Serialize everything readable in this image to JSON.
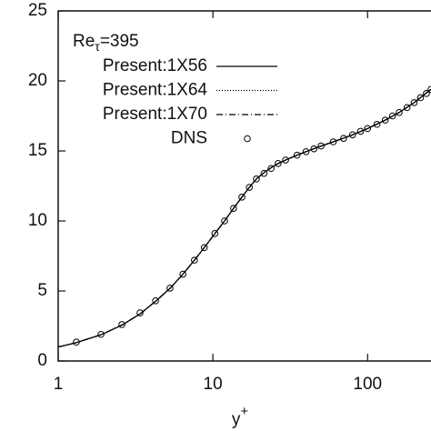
{
  "chart_data": {
    "type": "line",
    "annotation": [
      "Re",
      "τ",
      "=395"
    ],
    "x_label": [
      "y",
      "+"
    ],
    "xlim": [
      1,
      257
    ],
    "ylim": [
      0,
      25
    ],
    "xticks": [
      1,
      10,
      100
    ],
    "yticks": [
      0,
      5,
      10,
      15,
      20,
      25
    ],
    "x_scale": "log",
    "series": [
      {
        "name": "Present:1X56",
        "color": "#000000",
        "style": "solid",
        "x": [
          1,
          1.3,
          1.9,
          2.6,
          3.4,
          4.3,
          5.3,
          6.4,
          7.6,
          8.8,
          10.3,
          11.9,
          13.6,
          15.4,
          17.2,
          19.1,
          21.4,
          23.8,
          26.4,
          29.5,
          35,
          40,
          50,
          60,
          80,
          100,
          130,
          160,
          200,
          257
        ],
        "values": [
          1.0,
          1.3,
          1.88,
          2.58,
          3.38,
          4.3,
          5.2,
          6.2,
          7.2,
          8.1,
          9.1,
          10.0,
          10.9,
          11.7,
          12.4,
          13.0,
          13.45,
          13.8,
          14.1,
          14.35,
          14.7,
          14.95,
          15.35,
          15.65,
          16.15,
          16.6,
          17.2,
          17.75,
          18.45,
          19.4
        ]
      },
      {
        "name": "Present:1X64",
        "color": "#000000",
        "style": "dotted",
        "x": [
          1,
          1.3,
          1.9,
          2.6,
          3.4,
          4.3,
          5.3,
          6.4,
          7.6,
          8.8,
          10.3,
          11.9,
          13.6,
          15.4,
          17.2,
          19.1,
          21.4,
          23.8,
          26.4,
          29.5,
          35,
          40,
          50,
          60,
          80,
          100,
          130,
          160,
          200,
          257
        ],
        "values": [
          1.0,
          1.3,
          1.88,
          2.58,
          3.38,
          4.3,
          5.2,
          6.2,
          7.2,
          8.1,
          9.1,
          10.0,
          10.9,
          11.7,
          12.4,
          13.0,
          13.45,
          13.8,
          14.1,
          14.35,
          14.7,
          14.95,
          15.35,
          15.65,
          16.15,
          16.6,
          17.2,
          17.75,
          18.45,
          19.4
        ]
      },
      {
        "name": "Present:1X70",
        "color": "#000000",
        "style": "dashdot",
        "x": [
          1,
          1.3,
          1.9,
          2.6,
          3.4,
          4.3,
          5.3,
          6.4,
          7.6,
          8.8,
          10.3,
          11.9,
          13.6,
          15.4,
          17.2,
          19.1,
          21.4,
          23.8,
          26.4,
          29.5,
          35,
          40,
          50,
          60,
          80,
          100,
          130,
          160,
          200,
          257
        ],
        "values": [
          1.0,
          1.3,
          1.88,
          2.58,
          3.38,
          4.3,
          5.2,
          6.2,
          7.2,
          8.1,
          9.1,
          10.0,
          10.9,
          11.7,
          12.4,
          13.0,
          13.45,
          13.8,
          14.1,
          14.35,
          14.7,
          14.95,
          15.35,
          15.65,
          16.15,
          16.6,
          17.2,
          17.75,
          18.45,
          19.4
        ]
      },
      {
        "name": "DNS",
        "color": "#000000",
        "style": "circles",
        "x": [
          1.31,
          1.89,
          2.58,
          3.38,
          4.26,
          5.28,
          6.4,
          7.6,
          8.8,
          10.3,
          11.9,
          13.6,
          15.4,
          17.2,
          19.1,
          21.4,
          23.8,
          26.4,
          29.5,
          35,
          40,
          45,
          50,
          60,
          70,
          80,
          90,
          100,
          115,
          130,
          145,
          160,
          180,
          200,
          220,
          240,
          257
        ],
        "values": [
          1.35,
          1.9,
          2.6,
          3.44,
          4.3,
          5.2,
          6.2,
          7.2,
          8.1,
          9.1,
          10.0,
          10.9,
          11.7,
          12.4,
          13.0,
          13.4,
          13.75,
          14.1,
          14.35,
          14.7,
          14.95,
          15.15,
          15.35,
          15.65,
          15.9,
          16.15,
          16.4,
          16.6,
          16.9,
          17.2,
          17.5,
          17.75,
          18.1,
          18.45,
          18.8,
          19.1,
          19.4
        ]
      }
    ]
  }
}
